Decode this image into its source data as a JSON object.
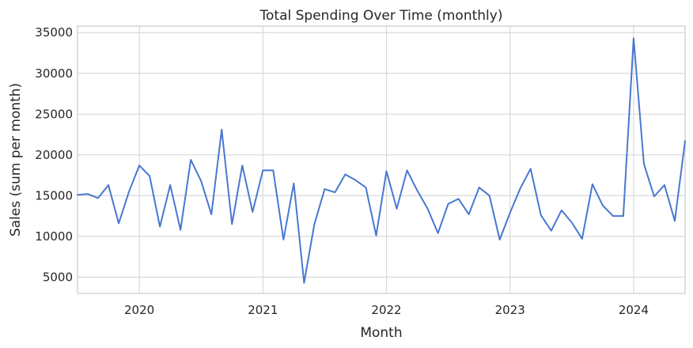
{
  "chart_data": {
    "type": "line",
    "title": "Total Spending Over Time (monthly)",
    "xlabel": "Month",
    "ylabel": "Sales (sum per month)",
    "x_ticks": [
      "2020",
      "2021",
      "2022",
      "2023",
      "2024"
    ],
    "y_ticks": [
      5000,
      10000,
      15000,
      20000,
      25000,
      30000,
      35000
    ],
    "xlim": [
      "2019-07",
      "2024-06"
    ],
    "ylim": [
      3000,
      35800
    ],
    "grid": true,
    "line_color": "#4878d0",
    "series": [
      {
        "x": [
          "2019-07",
          "2019-08",
          "2019-09",
          "2019-10",
          "2019-11",
          "2019-12",
          "2020-01",
          "2020-02",
          "2020-03",
          "2020-04",
          "2020-05",
          "2020-06",
          "2020-07",
          "2020-08",
          "2020-09",
          "2020-10",
          "2020-11",
          "2020-12",
          "2021-01",
          "2021-02",
          "2021-03",
          "2021-04",
          "2021-05",
          "2021-06",
          "2021-07",
          "2021-08",
          "2021-09",
          "2021-10",
          "2021-11",
          "2021-12",
          "2022-01",
          "2022-02",
          "2022-03",
          "2022-04",
          "2022-05",
          "2022-06",
          "2022-07",
          "2022-08",
          "2022-09",
          "2022-10",
          "2022-11",
          "2022-12",
          "2023-01",
          "2023-02",
          "2023-03",
          "2023-04",
          "2023-05",
          "2023-06",
          "2023-07",
          "2023-08",
          "2023-09",
          "2023-10",
          "2023-11",
          "2023-12",
          "2024-01",
          "2024-02",
          "2024-03",
          "2024-04",
          "2024-05",
          "2024-06"
        ],
        "values": [
          15100,
          15200,
          14700,
          16300,
          11600,
          15500,
          18700,
          17400,
          11200,
          16300,
          10800,
          19400,
          16800,
          12700,
          23100,
          11500,
          18700,
          13000,
          18100,
          18100,
          9600,
          16500,
          4300,
          11500,
          15800,
          15400,
          17600,
          16900,
          16000,
          10100,
          18000,
          13400,
          18100,
          15600,
          13400,
          10400,
          14000,
          14600,
          12700,
          16000,
          15000,
          9600,
          12900,
          15900,
          18300,
          12600,
          10700,
          13200,
          11700,
          9700,
          16400,
          13800,
          12500,
          12500,
          34300,
          18900,
          14900,
          16300,
          11900,
          21700
        ]
      }
    ]
  }
}
